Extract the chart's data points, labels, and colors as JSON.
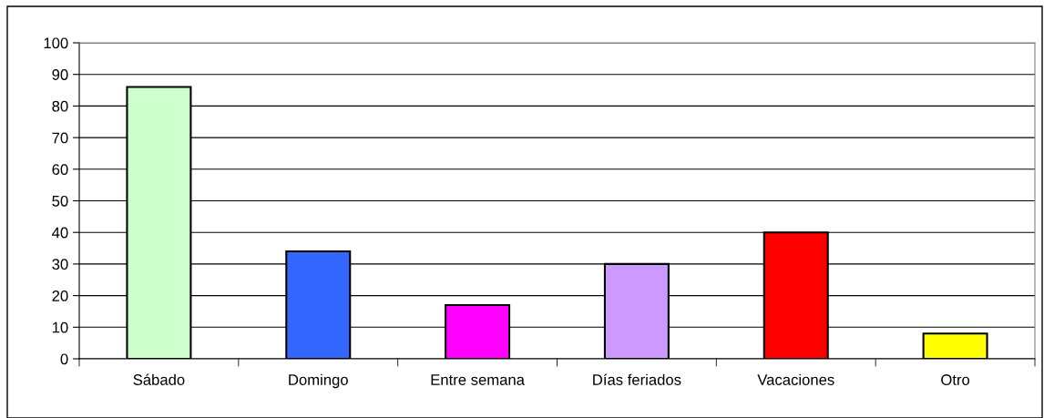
{
  "chart_data": {
    "type": "bar",
    "categories": [
      "Sábado",
      "Domingo",
      "Entre semana",
      "Días feriados",
      "Vacaciones",
      "Otro"
    ],
    "values": [
      86,
      34,
      17,
      30,
      40,
      8
    ],
    "colors": [
      "#ccffcc",
      "#3366ff",
      "#ff00ff",
      "#cc99ff",
      "#ff0000",
      "#ffff00"
    ],
    "ylim": [
      0,
      100
    ],
    "yticks": [
      0,
      10,
      20,
      30,
      40,
      50,
      60,
      70,
      80,
      90,
      100
    ],
    "grid": "y"
  }
}
